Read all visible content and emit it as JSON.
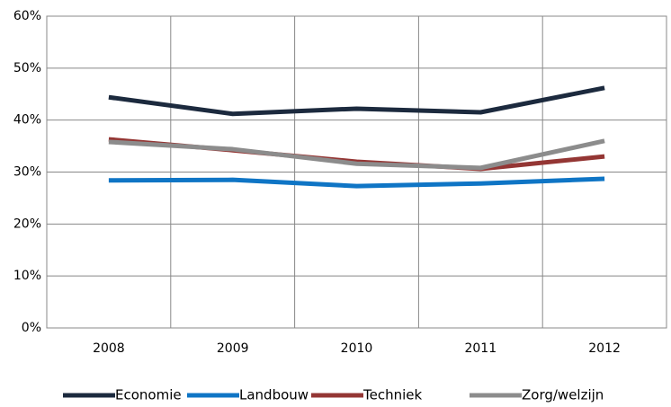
{
  "chart_data": {
    "type": "line",
    "categories": [
      "2008",
      "2009",
      "2010",
      "2011",
      "2012"
    ],
    "series": [
      {
        "name": "Economie",
        "color": "#1c2a3e",
        "values": [
          44.4,
          41.2,
          42.2,
          41.5,
          46.2
        ]
      },
      {
        "name": "Landbouw",
        "color": "#0f75c5",
        "values": [
          28.4,
          28.5,
          27.3,
          27.8,
          28.7
        ]
      },
      {
        "name": "Techniek",
        "color": "#943634",
        "values": [
          36.3,
          34.2,
          32.0,
          30.6,
          33.0
        ]
      },
      {
        "name": "Zorg/welzijn",
        "color": "#8c8c8c",
        "values": [
          35.8,
          34.4,
          31.6,
          30.8,
          36.0
        ]
      }
    ],
    "ylim": [
      0,
      60
    ],
    "yticks": [
      {
        "value": 0,
        "label": "0%"
      },
      {
        "value": 10,
        "label": "10%"
      },
      {
        "value": 20,
        "label": "20%"
      },
      {
        "value": 30,
        "label": "30%"
      },
      {
        "value": 40,
        "label": "40%"
      },
      {
        "value": 50,
        "label": "50%"
      },
      {
        "value": 60,
        "label": "60%"
      }
    ],
    "grid": true,
    "legend": "bottom"
  }
}
